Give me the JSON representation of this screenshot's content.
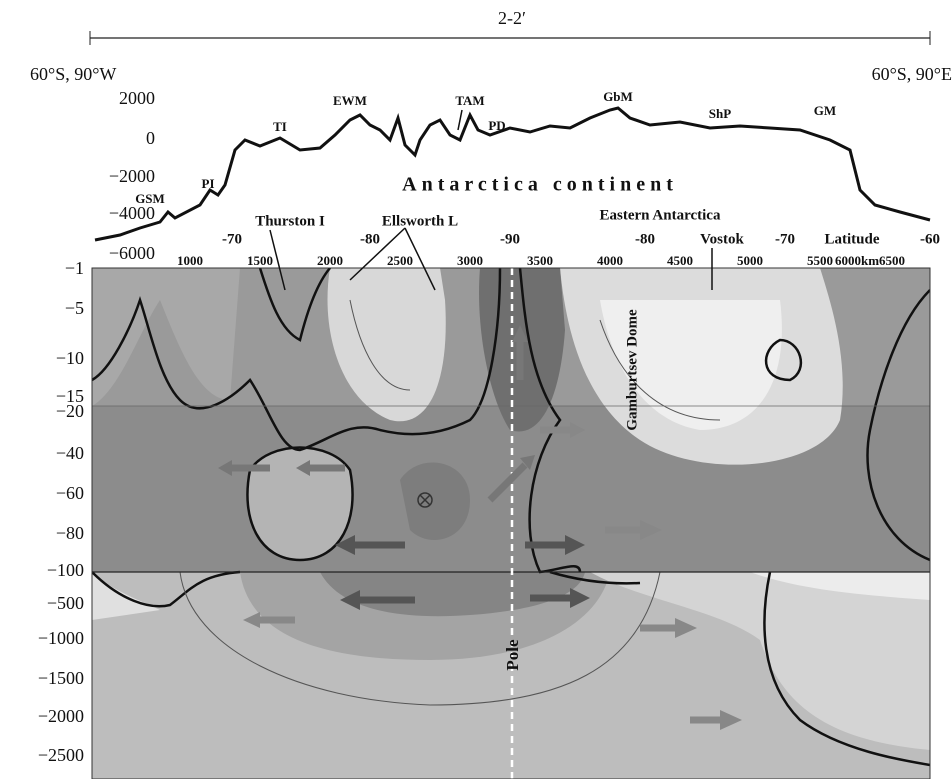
{
  "header": {
    "section": "2-2′",
    "left_end": "60°S, 90°W",
    "right_end": "60°S, 90°E"
  },
  "profile": {
    "elevation_ticks": [
      "2000",
      "0",
      "−2000",
      "−4000",
      "−6000"
    ],
    "features": [
      "GSM",
      "PI",
      "TI",
      "EWM",
      "TAM",
      "PD",
      "GbM",
      "ShP",
      "GM"
    ],
    "continent_label": "Antarctica continent",
    "regions": [
      "Thurston I",
      "Ellsworth L",
      "Eastern Antarctica",
      "Vostok"
    ]
  },
  "latitude_axis": {
    "ticks": [
      "-70",
      "-80",
      "-90",
      "-80",
      "-70"
    ],
    "label": "Latitude",
    "end": "-60"
  },
  "distance_axis": {
    "ticks": [
      "1000",
      "1500",
      "2000",
      "2500",
      "3000",
      "3500",
      "4000",
      "4500",
      "5000",
      "5500",
      "6000km6500"
    ]
  },
  "depth_axis": {
    "ticks": [
      "−1",
      "−5",
      "−10",
      "−15",
      "−20",
      "−40",
      "−60",
      "−80",
      "−100",
      "−500",
      "−1000",
      "−1500",
      "−2000",
      "−2500"
    ]
  },
  "section_labels": {
    "dome": "Gamburtsev Dome",
    "pole": "Pole"
  }
}
